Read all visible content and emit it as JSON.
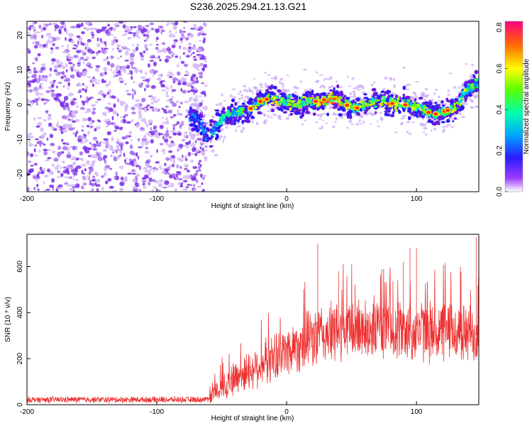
{
  "title": "S236.2025.294.21.13.G21",
  "chart_data": [
    {
      "type": "heatmap",
      "name": "spectrogram",
      "xlabel": "Height of straight line (km)",
      "ylabel": "Frequency (Hz)",
      "xlim": [
        -200,
        148
      ],
      "ylim": [
        -25,
        24
      ],
      "xticks": [
        -200,
        -100,
        0,
        100
      ],
      "yticks": [
        -20,
        -10,
        0,
        10,
        20
      ],
      "colorbar": {
        "label": "Normalized spectral amplitude",
        "range": [
          0.0,
          0.83
        ],
        "ticks": [
          0.0,
          0.2,
          0.4,
          0.6,
          0.8
        ],
        "tick_labels": [
          "0.0",
          "0.2",
          "0.4",
          "0.6",
          "0.8"
        ]
      },
      "noise_region_x": [
        -200,
        -62
      ],
      "ridge": {
        "x": [
          -75,
          -68,
          -62,
          -57,
          -50,
          -45,
          -38,
          -30,
          -25,
          -20,
          -12,
          -5,
          0,
          8,
          15,
          25,
          35,
          45,
          55,
          65,
          75,
          85,
          95,
          105,
          112,
          120,
          130,
          140,
          148
        ],
        "freq": [
          -3,
          -4,
          -9,
          -8,
          -4,
          -3,
          -2,
          -2,
          0,
          1,
          2,
          1,
          1,
          0,
          1,
          1,
          2,
          0,
          -1,
          1,
          1,
          0,
          0,
          -1,
          -3,
          -2,
          -1,
          5,
          6
        ],
        "amp": [
          0.25,
          0.3,
          0.35,
          0.35,
          0.4,
          0.45,
          0.5,
          0.55,
          0.6,
          0.65,
          0.65,
          0.6,
          0.6,
          0.6,
          0.65,
          0.7,
          0.75,
          0.65,
          0.6,
          0.65,
          0.7,
          0.65,
          0.6,
          0.55,
          0.5,
          0.6,
          0.7,
          0.55,
          0.45
        ]
      }
    },
    {
      "type": "line",
      "name": "snr",
      "xlabel": "Height of straight line (km)",
      "ylabel": "SNR (10 * v/v)",
      "xlim": [
        -200,
        148
      ],
      "ylim": [
        0,
        740
      ],
      "xticks": [
        -200,
        -100,
        0,
        100
      ],
      "yticks": [
        0,
        200,
        400,
        600
      ],
      "color": "#ee3333",
      "envelope": {
        "x": [
          -200,
          -62,
          -55,
          -45,
          -35,
          -25,
          -15,
          -5,
          5,
          15,
          25,
          35,
          45,
          55,
          65,
          75,
          85,
          95,
          105,
          115,
          125,
          135,
          148
        ],
        "mean": [
          22,
          22,
          50,
          100,
          130,
          160,
          190,
          220,
          250,
          275,
          300,
          310,
          320,
          330,
          330,
          335,
          330,
          320,
          320,
          315,
          320,
          310,
          300
        ],
        "spread": [
          15,
          15,
          50,
          80,
          90,
          100,
          110,
          120,
          130,
          140,
          150,
          150,
          150,
          150,
          150,
          150,
          150,
          150,
          150,
          150,
          150,
          150,
          150
        ]
      },
      "peaks": [
        {
          "x": 24,
          "y": 700
        },
        {
          "x": 95,
          "y": 680
        },
        {
          "x": 100,
          "y": 680
        },
        {
          "x": 146,
          "y": 730
        },
        {
          "x": 90,
          "y": 620
        },
        {
          "x": 40,
          "y": 580
        }
      ]
    }
  ]
}
